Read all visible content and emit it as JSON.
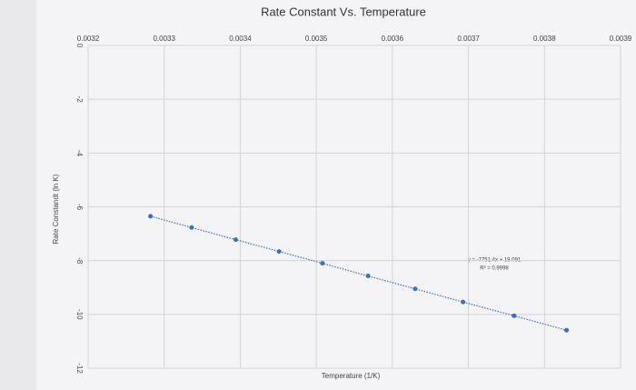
{
  "chart_data": {
    "type": "scatter",
    "title": "Rate Constant Vs. Temperature",
    "x_label": "Temperature (1/K)",
    "y_label": "Rate Constandt (ln K)",
    "annotations": [
      "y = -7751.4x + 19.091",
      "R² = 0.9998"
    ],
    "series": [
      {
        "name": "ln K",
        "color": "#3a6fc0",
        "x": [
          0.003282,
          0.003336,
          0.003394,
          0.003451,
          0.003508,
          0.003568,
          0.00363,
          0.003693,
          0.00376,
          0.003829
        ],
        "values": [
          -6.35,
          -6.77,
          -7.22,
          -7.66,
          -8.1,
          -8.57,
          -9.05,
          -9.54,
          -10.05,
          -10.59
        ]
      }
    ],
    "xlim": [
      0.0032,
      0.0039
    ],
    "xticks": [
      0.0032,
      0.0033,
      0.0034,
      0.0035,
      0.0036,
      0.0037,
      0.0038,
      0.0039
    ],
    "ylim": [
      -12,
      0
    ],
    "yticks": [
      0,
      -2,
      -4,
      -6,
      -8,
      -10,
      -12
    ],
    "grid": true
  }
}
